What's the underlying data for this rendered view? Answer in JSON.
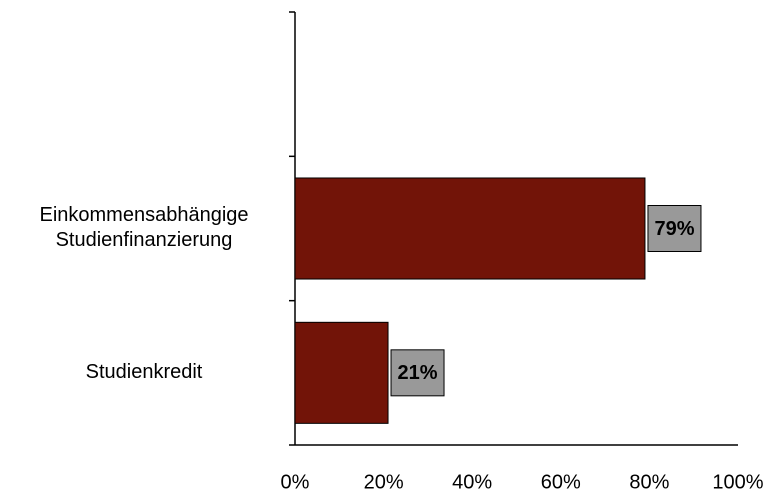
{
  "chart_data": {
    "type": "bar",
    "orientation": "horizontal",
    "categories": [
      null,
      "Einkommensabhängige\nStudienfinanzierung",
      "Studienkredit"
    ],
    "values": [
      null,
      79,
      21
    ],
    "value_labels": [
      null,
      "79%",
      "21%"
    ],
    "color": "#721408",
    "label_box_color": "#999999",
    "xlim": [
      0,
      100
    ],
    "xticks": [
      {
        "value": 0,
        "label": "0%"
      },
      {
        "value": 20,
        "label": "20%"
      },
      {
        "value": 40,
        "label": "40%"
      },
      {
        "value": 60,
        "label": "60%"
      },
      {
        "value": 80,
        "label": "80%"
      },
      {
        "value": 100,
        "label": "100%"
      }
    ],
    "grid": false
  }
}
